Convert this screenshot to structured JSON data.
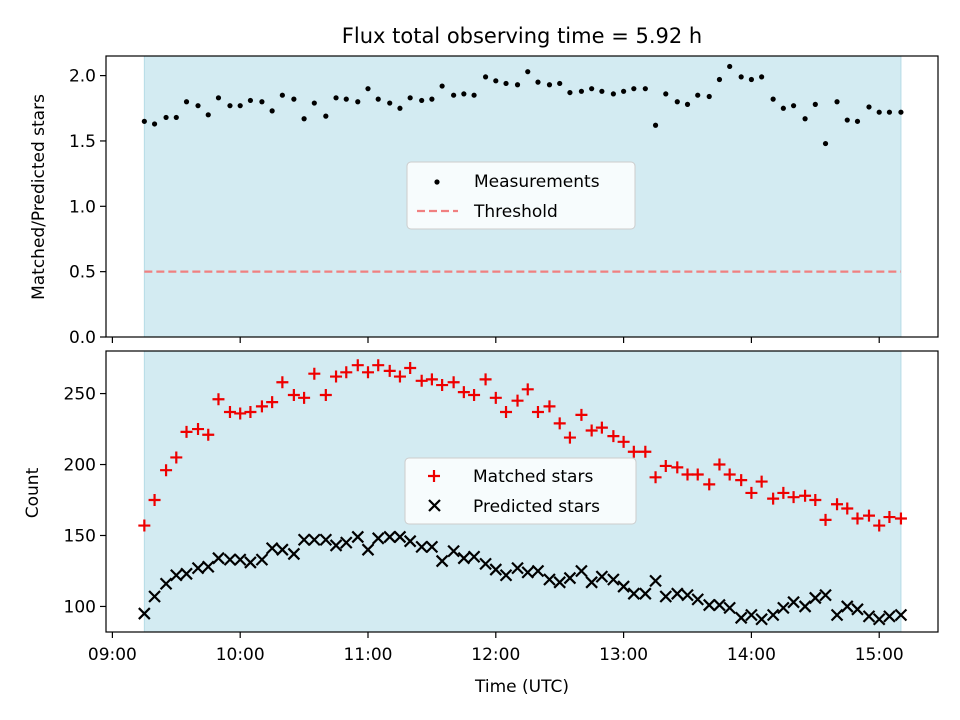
{
  "title": "Flux total observing time = 5.92 h",
  "x_axis": {
    "label": "Time (UTC)",
    "ticks": [
      "09:00",
      "10:00",
      "11:00",
      "12:00",
      "13:00",
      "14:00",
      "15:00"
    ],
    "tick_hours": [
      9,
      10,
      11,
      12,
      13,
      14,
      15
    ],
    "range_hours": [
      8.95,
      15.46
    ]
  },
  "observing_window_hours": [
    9.25,
    15.17
  ],
  "colors": {
    "window_fill": "#d3ebf2",
    "measurement": "#000000",
    "threshold": "#f08080",
    "matched": "#ee0000",
    "predicted": "#000000"
  },
  "chart_data": [
    {
      "type": "scatter",
      "panel": "top",
      "ylabel": "Matched/Predicted stars",
      "ylim": [
        0,
        2.15
      ],
      "yticks": [
        0.0,
        0.5,
        1.0,
        1.5,
        2.0
      ],
      "ytick_labels": [
        "0.0",
        "0.5",
        "1.0",
        "1.5",
        "2.0"
      ],
      "legend": {
        "placement": "center",
        "entries": [
          "Measurements",
          "Threshold"
        ]
      },
      "threshold": {
        "name": "Threshold",
        "y": 0.5,
        "style": "dashed"
      },
      "series": [
        {
          "name": "Measurements",
          "marker": "dot",
          "x": [
            9.25,
            9.33,
            9.42,
            9.5,
            9.58,
            9.67,
            9.75,
            9.83,
            9.92,
            10.0,
            10.08,
            10.17,
            10.25,
            10.33,
            10.42,
            10.5,
            10.58,
            10.67,
            10.75,
            10.83,
            10.92,
            11.0,
            11.08,
            11.17,
            11.25,
            11.33,
            11.42,
            11.5,
            11.58,
            11.67,
            11.75,
            11.83,
            11.92,
            12.0,
            12.08,
            12.17,
            12.25,
            12.33,
            12.42,
            12.5,
            12.58,
            12.67,
            12.75,
            12.83,
            12.92,
            13.0,
            13.08,
            13.17,
            13.25,
            13.33,
            13.42,
            13.5,
            13.58,
            13.67,
            13.75,
            13.83,
            13.92,
            14.0,
            14.08,
            14.17,
            14.25,
            14.33,
            14.42,
            14.5,
            14.58,
            14.67,
            14.75,
            14.83,
            14.92,
            15.0,
            15.08,
            15.17
          ],
          "y": [
            1.65,
            1.63,
            1.68,
            1.68,
            1.8,
            1.77,
            1.7,
            1.83,
            1.77,
            1.77,
            1.81,
            1.8,
            1.73,
            1.85,
            1.82,
            1.67,
            1.79,
            1.69,
            1.83,
            1.82,
            1.8,
            1.9,
            1.82,
            1.79,
            1.75,
            1.83,
            1.81,
            1.82,
            1.92,
            1.85,
            1.86,
            1.85,
            1.99,
            1.96,
            1.94,
            1.93,
            2.03,
            1.95,
            1.93,
            1.94,
            1.87,
            1.88,
            1.9,
            1.88,
            1.86,
            1.88,
            1.9,
            1.9,
            1.62,
            1.86,
            1.8,
            1.78,
            1.85,
            1.84,
            1.97,
            2.07,
            1.99,
            1.97,
            1.99,
            1.82,
            1.75,
            1.77,
            1.67,
            1.78,
            1.48,
            1.8,
            1.66,
            1.65,
            1.76,
            1.72,
            1.72,
            1.72
          ]
        }
      ]
    },
    {
      "type": "scatter",
      "panel": "bottom",
      "ylabel": "Count",
      "ylim": [
        82,
        280
      ],
      "yticks": [
        100,
        150,
        200,
        250
      ],
      "ytick_labels": [
        "100",
        "150",
        "200",
        "250"
      ],
      "legend": {
        "placement": "center",
        "entries": [
          "Matched stars",
          "Predicted stars"
        ]
      },
      "series": [
        {
          "name": "Matched stars",
          "marker": "plus",
          "x": [
            9.25,
            9.33,
            9.42,
            9.5,
            9.58,
            9.67,
            9.75,
            9.83,
            9.92,
            10.0,
            10.08,
            10.17,
            10.25,
            10.33,
            10.42,
            10.5,
            10.58,
            10.67,
            10.75,
            10.83,
            10.92,
            11.0,
            11.08,
            11.17,
            11.25,
            11.33,
            11.42,
            11.5,
            11.58,
            11.67,
            11.75,
            11.83,
            11.92,
            12.0,
            12.08,
            12.17,
            12.25,
            12.33,
            12.42,
            12.5,
            12.58,
            12.67,
            12.75,
            12.83,
            12.92,
            13.0,
            13.08,
            13.17,
            13.25,
            13.33,
            13.42,
            13.5,
            13.58,
            13.67,
            13.75,
            13.83,
            13.92,
            14.0,
            14.08,
            14.17,
            14.25,
            14.33,
            14.42,
            14.5,
            14.58,
            14.67,
            14.75,
            14.83,
            14.92,
            15.0,
            15.08,
            15.17
          ],
          "y": [
            157,
            175,
            196,
            205,
            223,
            225,
            221,
            246,
            237,
            236,
            237,
            241,
            244,
            258,
            249,
            247,
            264,
            249,
            262,
            265,
            270,
            265,
            270,
            266,
            262,
            268,
            259,
            260,
            256,
            258,
            251,
            249,
            260,
            247,
            237,
            245,
            253,
            237,
            241,
            229,
            219,
            235,
            224,
            226,
            220,
            216,
            209,
            209,
            191,
            199,
            198,
            193,
            193,
            186,
            200,
            193,
            189,
            180,
            188,
            176,
            180,
            177,
            178,
            175,
            161,
            172,
            169,
            162,
            164,
            157,
            163,
            162
          ]
        },
        {
          "name": "Predicted stars",
          "marker": "x",
          "x": [
            9.25,
            9.33,
            9.42,
            9.5,
            9.58,
            9.67,
            9.75,
            9.83,
            9.92,
            10.0,
            10.08,
            10.17,
            10.25,
            10.33,
            10.42,
            10.5,
            10.58,
            10.67,
            10.75,
            10.83,
            10.92,
            11.0,
            11.08,
            11.17,
            11.25,
            11.33,
            11.42,
            11.5,
            11.58,
            11.67,
            11.75,
            11.83,
            11.92,
            12.0,
            12.08,
            12.17,
            12.25,
            12.33,
            12.42,
            12.5,
            12.58,
            12.67,
            12.75,
            12.83,
            12.92,
            13.0,
            13.08,
            13.17,
            13.25,
            13.33,
            13.42,
            13.5,
            13.58,
            13.67,
            13.75,
            13.83,
            13.92,
            14.0,
            14.08,
            14.17,
            14.25,
            14.33,
            14.42,
            14.5,
            14.58,
            14.67,
            14.75,
            14.83,
            14.92,
            15.0,
            15.08,
            15.17
          ],
          "y": [
            95,
            107,
            116,
            122,
            123,
            127,
            128,
            134,
            133,
            133,
            131,
            133,
            141,
            140,
            137,
            147,
            147,
            147,
            143,
            145,
            149,
            140,
            148,
            149,
            149,
            146,
            142,
            142,
            132,
            139,
            134,
            135,
            130,
            126,
            122,
            127,
            124,
            125,
            119,
            117,
            120,
            125,
            117,
            121,
            119,
            114,
            109,
            109,
            118,
            107,
            109,
            108,
            105,
            101,
            101,
            99,
            92,
            94,
            91,
            94,
            99,
            103,
            100,
            106,
            108,
            94,
            100,
            98,
            93,
            91,
            93,
            94
          ]
        }
      ]
    }
  ]
}
